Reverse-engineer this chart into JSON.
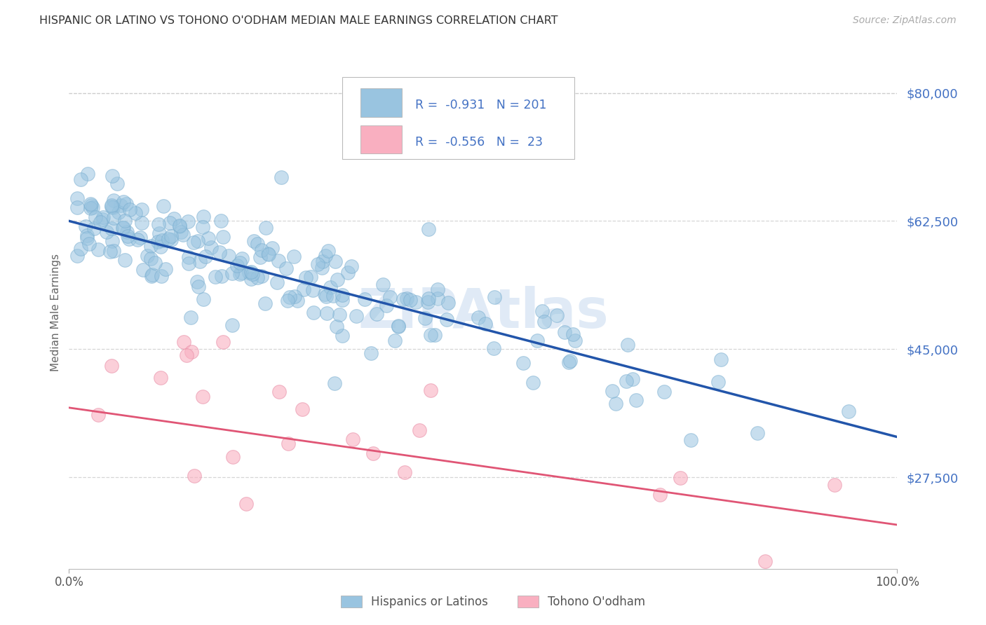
{
  "title": "HISPANIC OR LATINO VS TOHONO O'ODHAM MEDIAN MALE EARNINGS CORRELATION CHART",
  "source": "Source: ZipAtlas.com",
  "ylabel": "Median Male Earnings",
  "ytick_vals": [
    27500,
    45000,
    62500,
    80000
  ],
  "ytick_labels": [
    "$27,500",
    "$45,000",
    "$62,500",
    "$80,000"
  ],
  "ylim": [
    15000,
    85000
  ],
  "xlim": [
    0.0,
    1.0
  ],
  "xtick_vals": [
    0.0,
    1.0
  ],
  "xtick_labels": [
    "0.0%",
    "100.0%"
  ],
  "legend_r_blue": "-0.931",
  "legend_n_blue": "201",
  "legend_r_pink": "-0.556",
  "legend_n_pink": "23",
  "blue_scatter_color": "#99c4e0",
  "pink_scatter_color": "#f9afc0",
  "blue_line_color": "#2255aa",
  "pink_line_color": "#e05575",
  "tick_label_color": "#4472c4",
  "title_color": "#333333",
  "ylabel_color": "#666666",
  "grid_color": "#cccccc",
  "source_color": "#aaaaaa",
  "watermark_color": "#dde8f5",
  "blue_line_y0": 62500,
  "blue_line_y1": 33000,
  "pink_line_y0": 37000,
  "pink_line_y1": 21000,
  "seed": 99
}
